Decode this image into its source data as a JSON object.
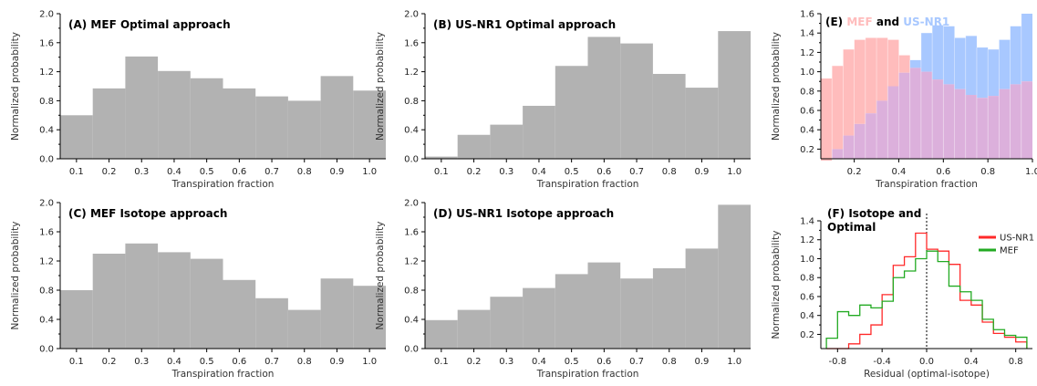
{
  "colors": {
    "gray_bar": "#b2b2b2",
    "mef_overlay": "#ffbcbc",
    "usnr1_overlay": "#a8c8ff",
    "overlap": "#dcb0dc",
    "mef_line": "#22aa22",
    "usnr1_line": "#ff2a2a"
  },
  "chart_data": [
    {
      "id": "A",
      "type": "bar",
      "title": "(A) MEF Optimal approach",
      "xlabel": "Transpiration fraction",
      "ylabel": "Normalized probability",
      "xlim": [
        0.05,
        1.05
      ],
      "ylim": [
        0,
        2.0
      ],
      "xticks": [
        "0.1",
        "0.2",
        "0.3",
        "0.4",
        "0.5",
        "0.6",
        "0.7",
        "0.8",
        "0.9",
        "1.0"
      ],
      "yticks": [
        "0.0",
        "0.4",
        "0.8",
        "1.2",
        "1.6",
        "2.0"
      ],
      "bin_edges": [
        0.05,
        0.15,
        0.25,
        0.35,
        0.45,
        0.55,
        0.65,
        0.75,
        0.85,
        0.95,
        1.05
      ],
      "values": [
        0.6,
        0.97,
        1.41,
        1.21,
        1.11,
        0.97,
        0.86,
        0.8,
        1.14,
        0.94
      ]
    },
    {
      "id": "B",
      "type": "bar",
      "title": "(B) US-NR1 Optimal approach",
      "xlabel": "Transpiration fraction",
      "ylabel": "Normalized probability",
      "xlim": [
        0.05,
        1.05
      ],
      "ylim": [
        0,
        2.0
      ],
      "xticks": [
        "0.1",
        "0.2",
        "0.3",
        "0.4",
        "0.5",
        "0.6",
        "0.7",
        "0.8",
        "0.9",
        "1.0"
      ],
      "yticks": [
        "0.0",
        "0.4",
        "0.8",
        "1.2",
        "1.6",
        "2.0"
      ],
      "bin_edges": [
        0.05,
        0.15,
        0.25,
        0.35,
        0.45,
        0.55,
        0.65,
        0.75,
        0.85,
        0.95,
        1.05
      ],
      "values": [
        0.03,
        0.33,
        0.47,
        0.73,
        1.28,
        1.68,
        1.59,
        1.17,
        0.98,
        1.76
      ]
    },
    {
      "id": "C",
      "type": "bar",
      "title": "(C) MEF Isotope approach",
      "xlabel": "Transpiration fraction",
      "ylabel": "Normalized probability",
      "xlim": [
        0.05,
        1.05
      ],
      "ylim": [
        0,
        2.0
      ],
      "xticks": [
        "0.1",
        "0.2",
        "0.3",
        "0.4",
        "0.5",
        "0.6",
        "0.7",
        "0.8",
        "0.9",
        "1.0"
      ],
      "yticks": [
        "0.0",
        "0.4",
        "0.8",
        "1.2",
        "1.6",
        "2.0"
      ],
      "bin_edges": [
        0.05,
        0.15,
        0.25,
        0.35,
        0.45,
        0.55,
        0.65,
        0.75,
        0.85,
        0.95,
        1.05
      ],
      "values": [
        0.8,
        1.3,
        1.44,
        1.32,
        1.23,
        0.94,
        0.69,
        0.53,
        0.96,
        0.86
      ]
    },
    {
      "id": "D",
      "type": "bar",
      "title": "(D) US-NR1 Isotope approach",
      "xlabel": "Transpiration fraction",
      "ylabel": "Normalized probability",
      "xlim": [
        0.05,
        1.05
      ],
      "ylim": [
        0,
        2.0
      ],
      "xticks": [
        "0.1",
        "0.2",
        "0.3",
        "0.4",
        "0.5",
        "0.6",
        "0.7",
        "0.8",
        "0.9",
        "1.0"
      ],
      "yticks": [
        "0.0",
        "0.4",
        "0.8",
        "1.2",
        "1.6",
        "2.0"
      ],
      "bin_edges": [
        0.05,
        0.15,
        0.25,
        0.35,
        0.45,
        0.55,
        0.65,
        0.75,
        0.85,
        0.95,
        1.05
      ],
      "values": [
        0.39,
        0.53,
        0.71,
        0.83,
        1.02,
        1.18,
        0.96,
        1.1,
        1.37,
        1.97
      ]
    },
    {
      "id": "E",
      "type": "area",
      "title_parts": [
        {
          "text": "(E) ",
          "color": "#000000"
        },
        {
          "text": "MEF",
          "color": "#ffbcbc"
        },
        {
          "text": " and ",
          "color": "#000000"
        },
        {
          "text": "US-NR1",
          "color": "#a8c8ff"
        }
      ],
      "xlabel": "Transpiration fraction",
      "ylabel": "Normalized probability",
      "xlim": [
        0.05,
        1.0
      ],
      "ylim": [
        0.1,
        1.6
      ],
      "xticks": [
        "0.2",
        "0.4",
        "0.6",
        "0.8",
        "1.0"
      ],
      "yticks": [
        "0.2",
        "0.4",
        "0.6",
        "0.8",
        "1.0",
        "1.2",
        "1.4",
        "1.6"
      ],
      "bin_edges": [
        0.05,
        0.1,
        0.15,
        0.2,
        0.25,
        0.3,
        0.35,
        0.4,
        0.45,
        0.5,
        0.55,
        0.6,
        0.65,
        0.7,
        0.75,
        0.8,
        0.85,
        0.9,
        0.95,
        1.0
      ],
      "series": [
        {
          "name": "MEF",
          "values": [
            0.93,
            1.06,
            1.23,
            1.33,
            1.35,
            1.35,
            1.33,
            1.17,
            1.04,
            1.0,
            0.92,
            0.87,
            0.82,
            0.76,
            0.73,
            0.75,
            0.82,
            0.87,
            0.9
          ]
        },
        {
          "name": "US-NR1",
          "values": [
            0.08,
            0.2,
            0.34,
            0.46,
            0.57,
            0.7,
            0.85,
            0.99,
            1.12,
            1.4,
            1.48,
            1.47,
            1.35,
            1.37,
            1.25,
            1.23,
            1.33,
            1.47,
            1.6
          ]
        }
      ]
    },
    {
      "id": "F",
      "type": "line",
      "title_lines": [
        "(F) Isotope and",
        "Optimal"
      ],
      "xlabel": "Residual (optimal-isotope)",
      "ylabel": "Normalized probability",
      "xlim": [
        -0.95,
        0.95
      ],
      "ylim": [
        0.05,
        1.4
      ],
      "xticks": [
        "-0.8",
        "-0.4",
        "0.0",
        "0.4",
        "0.8"
      ],
      "yticks": [
        "0.2",
        "0.4",
        "0.6",
        "0.8",
        "1.0",
        "1.2",
        "1.4"
      ],
      "zero_line": true,
      "legend": "right",
      "bin_edges": [
        -0.9,
        -0.8,
        -0.7,
        -0.6,
        -0.5,
        -0.4,
        -0.3,
        -0.2,
        -0.1,
        0.0,
        0.1,
        0.2,
        0.3,
        0.4,
        0.5,
        0.6,
        0.7,
        0.8,
        0.9
      ],
      "series": [
        {
          "name": "US-NR1",
          "color": "#ff2a2a",
          "values": [
            0.0,
            0.02,
            0.1,
            0.2,
            0.3,
            0.62,
            0.93,
            1.02,
            1.27,
            1.1,
            1.08,
            0.94,
            0.56,
            0.51,
            0.33,
            0.21,
            0.17,
            0.12
          ]
        },
        {
          "name": "MEF",
          "color": "#22aa22",
          "values": [
            0.16,
            0.44,
            0.4,
            0.51,
            0.48,
            0.55,
            0.8,
            0.87,
            1.0,
            1.08,
            0.97,
            0.71,
            0.65,
            0.56,
            0.36,
            0.25,
            0.19,
            0.17
          ]
        }
      ]
    }
  ]
}
